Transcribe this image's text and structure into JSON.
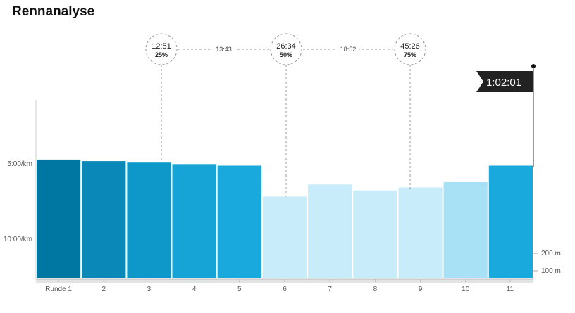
{
  "title": "Rennanalyse",
  "chart_data": {
    "type": "bar",
    "categories": [
      "Runde 1",
      "2",
      "3",
      "4",
      "5",
      "6",
      "7",
      "8",
      "9",
      "10",
      "11"
    ],
    "pace_min_per_km": [
      4.95,
      5.05,
      5.15,
      5.25,
      5.35,
      7.4,
      6.6,
      7.0,
      6.8,
      6.45,
      5.35
    ],
    "y_ticks": [
      {
        "label": "5:00/km",
        "value": 5
      },
      {
        "label": "10:00/km",
        "value": 10
      }
    ],
    "elevation_ticks": [
      {
        "label": "200 m",
        "value": 200
      },
      {
        "label": "100 m",
        "value": 100
      }
    ],
    "bar_colors": [
      "#0077a3",
      "#0a88b7",
      "#0d98c9",
      "#16a3d6",
      "#19a9dd",
      "#c8ecfa",
      "#c8ecfa",
      "#c8ecfa",
      "#c8ecfa",
      "#a8e0f6",
      "#19a9dd"
    ],
    "milestones": [
      {
        "time": "12:51",
        "percent": "25%"
      },
      {
        "time": "26:34",
        "percent": "50%"
      },
      {
        "time": "45:26",
        "percent": "75%"
      }
    ],
    "splits": [
      "13:43",
      "18:52"
    ],
    "finish_time": "1:02:01"
  }
}
